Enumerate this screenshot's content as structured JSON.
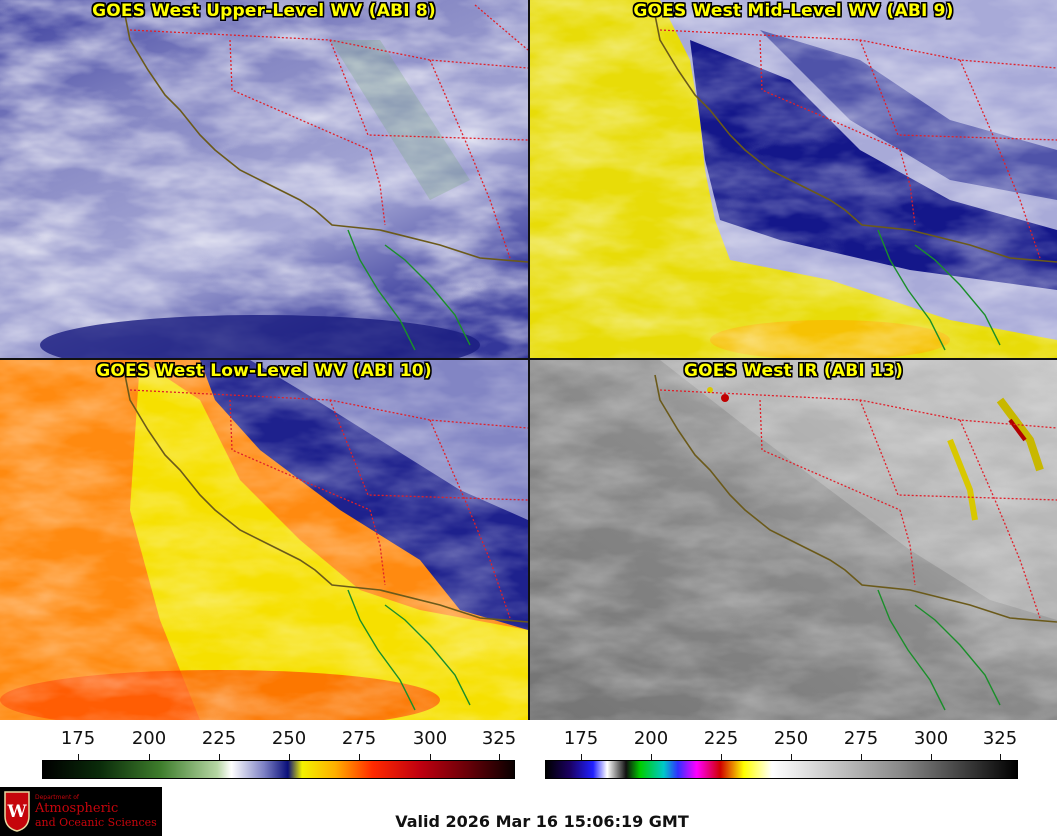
{
  "panels": [
    {
      "title": "GOES West Upper-Level WV (ABI 8)"
    },
    {
      "title": "GOES West Mid-Level WV (ABI 9)"
    },
    {
      "title": "GOES West Low-Level WV (ABI 10)"
    },
    {
      "title": "GOES West IR (ABI 13)"
    }
  ],
  "colorbars": [
    {
      "ticks": [
        "175",
        "200",
        "225",
        "250",
        "275",
        "300",
        "325"
      ]
    },
    {
      "ticks": [
        "175",
        "200",
        "225",
        "250",
        "275",
        "300",
        "325"
      ]
    }
  ],
  "logo": {
    "line1": "Department of",
    "line2": "Atmospheric",
    "line3": "and Oceanic Sciences"
  },
  "valid_time": "Valid 2026 Mar 16 15:06:19 GMT",
  "colors": {
    "title_text": "#ffff00",
    "coastline": "#6b5a1a",
    "mexico_coast": "#1a8f2a",
    "state_borders": "#e0202a"
  }
}
